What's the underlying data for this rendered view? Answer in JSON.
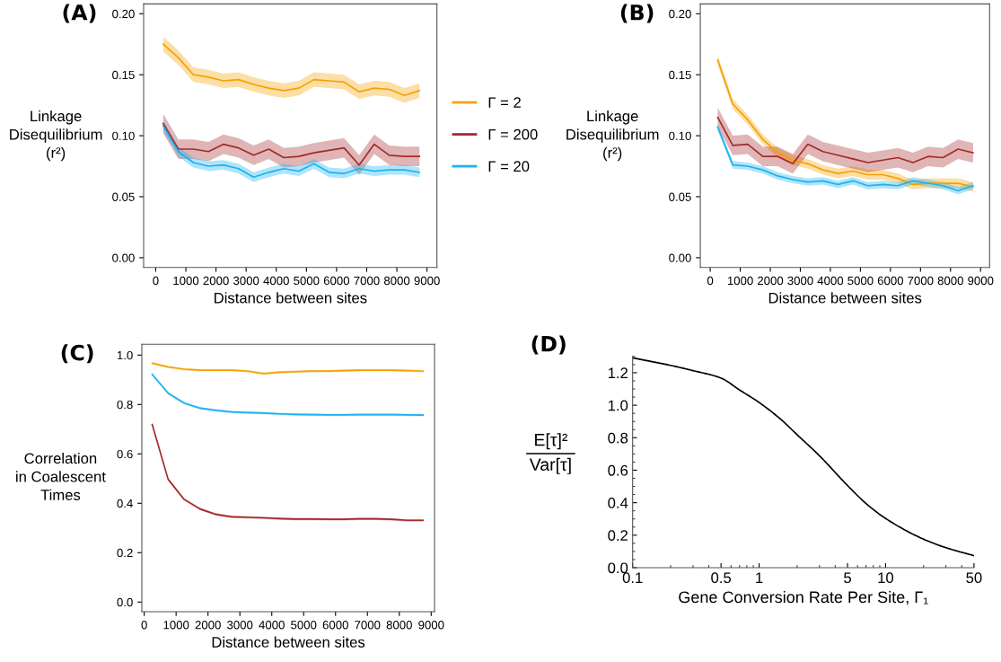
{
  "chart_data": [
    {
      "type": "line",
      "title": "(A)",
      "xlabel": "Distance between sites",
      "ylabel": "Linkage\nDisequilibrium\n(r²)",
      "x": [
        250,
        750,
        1250,
        1750,
        2250,
        2750,
        3250,
        3750,
        4250,
        4750,
        5250,
        5750,
        6250,
        6750,
        7250,
        7750,
        8250,
        8750
      ],
      "xlim": [
        -400,
        9330
      ],
      "ylim": [
        -0.008,
        0.208
      ],
      "xticks": [
        0,
        1000,
        2000,
        3000,
        4000,
        5000,
        6000,
        7000,
        8000,
        9000
      ],
      "yticks": [
        {
          "value": 0,
          "label": "0.00"
        },
        {
          "value": 0.05,
          "label": "0.05"
        },
        {
          "value": 0.1,
          "label": "0.10"
        },
        {
          "value": 0.15,
          "label": "0.15"
        },
        {
          "value": 0.2,
          "label": "0.20"
        }
      ],
      "legend": "right",
      "series": [
        {
          "name": "Γ = 2",
          "color": "#f5a100",
          "values": [
            0.175,
            0.164,
            0.15,
            0.148,
            0.145,
            0.146,
            0.142,
            0.139,
            0.137,
            0.139,
            0.146,
            0.145,
            0.144,
            0.136,
            0.139,
            0.138,
            0.133,
            0.137
          ],
          "lower": [
            0.169,
            0.158,
            0.144,
            0.142,
            0.139,
            0.14,
            0.136,
            0.133,
            0.131,
            0.133,
            0.14,
            0.139,
            0.138,
            0.13,
            0.133,
            0.132,
            0.127,
            0.131
          ],
          "upper": [
            0.181,
            0.17,
            0.156,
            0.154,
            0.151,
            0.152,
            0.148,
            0.145,
            0.143,
            0.145,
            0.152,
            0.151,
            0.15,
            0.142,
            0.145,
            0.144,
            0.139,
            0.143
          ]
        },
        {
          "name": "Γ = 200",
          "color": "#a52a2a",
          "values": [
            0.11,
            0.089,
            0.089,
            0.087,
            0.093,
            0.09,
            0.084,
            0.089,
            0.082,
            0.083,
            0.086,
            0.088,
            0.09,
            0.076,
            0.093,
            0.084,
            0.083,
            0.083
          ],
          "lower": [
            0.102,
            0.081,
            0.081,
            0.079,
            0.085,
            0.082,
            0.076,
            0.081,
            0.074,
            0.075,
            0.078,
            0.08,
            0.082,
            0.068,
            0.085,
            0.076,
            0.075,
            0.075
          ],
          "upper": [
            0.118,
            0.097,
            0.097,
            0.095,
            0.101,
            0.098,
            0.092,
            0.097,
            0.09,
            0.091,
            0.094,
            0.096,
            0.098,
            0.084,
            0.101,
            0.092,
            0.091,
            0.091
          ]
        },
        {
          "name": "Γ = 20",
          "color": "#19b2f0",
          "values": [
            0.108,
            0.087,
            0.078,
            0.075,
            0.076,
            0.073,
            0.066,
            0.07,
            0.073,
            0.071,
            0.077,
            0.07,
            0.069,
            0.073,
            0.071,
            0.072,
            0.072,
            0.07
          ],
          "lower": [
            0.104,
            0.083,
            0.074,
            0.071,
            0.072,
            0.069,
            0.062,
            0.066,
            0.069,
            0.067,
            0.073,
            0.066,
            0.065,
            0.069,
            0.067,
            0.068,
            0.068,
            0.066
          ],
          "upper": [
            0.112,
            0.091,
            0.082,
            0.079,
            0.08,
            0.077,
            0.07,
            0.074,
            0.077,
            0.075,
            0.081,
            0.074,
            0.073,
            0.077,
            0.075,
            0.076,
            0.076,
            0.074
          ]
        }
      ]
    },
    {
      "type": "line",
      "title": "(B)",
      "xlabel": "Distance between sites",
      "ylabel": "Linkage\nDisequilibrium\n(r²)",
      "x": [
        250,
        750,
        1250,
        1750,
        2250,
        2750,
        3250,
        3750,
        4250,
        4750,
        5250,
        5750,
        6250,
        6750,
        7250,
        7750,
        8250,
        8750
      ],
      "xlim": [
        -330,
        9300
      ],
      "ylim": [
        -0.008,
        0.208
      ],
      "xticks": [
        0,
        1000,
        2000,
        3000,
        4000,
        5000,
        6000,
        7000,
        8000,
        9000
      ],
      "yticks": [
        {
          "value": 0,
          "label": "0.00"
        },
        {
          "value": 0.05,
          "label": "0.05"
        },
        {
          "value": 0.1,
          "label": "0.10"
        },
        {
          "value": 0.15,
          "label": "0.15"
        },
        {
          "value": 0.2,
          "label": "0.20"
        }
      ],
      "series": [
        {
          "color": "#f5a100",
          "values": [
            0.162,
            0.126,
            0.113,
            0.097,
            0.086,
            0.08,
            0.077,
            0.072,
            0.069,
            0.071,
            0.068,
            0.068,
            0.065,
            0.06,
            0.061,
            0.061,
            0.061,
            0.058
          ],
          "lower": [
            0.158,
            0.122,
            0.109,
            0.093,
            0.082,
            0.076,
            0.073,
            0.068,
            0.065,
            0.067,
            0.064,
            0.064,
            0.061,
            0.056,
            0.057,
            0.057,
            0.057,
            0.054
          ],
          "upper": [
            0.166,
            0.13,
            0.117,
            0.101,
            0.09,
            0.084,
            0.081,
            0.076,
            0.073,
            0.075,
            0.072,
            0.072,
            0.069,
            0.064,
            0.065,
            0.065,
            0.065,
            0.062
          ]
        },
        {
          "color": "#a52a2a",
          "values": [
            0.115,
            0.092,
            0.093,
            0.083,
            0.083,
            0.077,
            0.093,
            0.087,
            0.084,
            0.081,
            0.078,
            0.08,
            0.082,
            0.078,
            0.083,
            0.082,
            0.089,
            0.086
          ],
          "lower": [
            0.107,
            0.084,
            0.085,
            0.075,
            0.075,
            0.069,
            0.085,
            0.079,
            0.076,
            0.073,
            0.07,
            0.072,
            0.074,
            0.07,
            0.075,
            0.074,
            0.081,
            0.078
          ],
          "upper": [
            0.123,
            0.1,
            0.101,
            0.091,
            0.091,
            0.085,
            0.101,
            0.095,
            0.092,
            0.089,
            0.086,
            0.088,
            0.09,
            0.086,
            0.091,
            0.09,
            0.097,
            0.094
          ]
        },
        {
          "color": "#19b2f0",
          "values": [
            0.107,
            0.076,
            0.075,
            0.072,
            0.067,
            0.064,
            0.062,
            0.063,
            0.06,
            0.063,
            0.059,
            0.06,
            0.059,
            0.063,
            0.061,
            0.059,
            0.055,
            0.059
          ],
          "lower": [
            0.104,
            0.073,
            0.072,
            0.069,
            0.064,
            0.061,
            0.059,
            0.06,
            0.057,
            0.06,
            0.056,
            0.057,
            0.056,
            0.06,
            0.058,
            0.056,
            0.052,
            0.056
          ],
          "upper": [
            0.11,
            0.079,
            0.078,
            0.075,
            0.07,
            0.067,
            0.065,
            0.066,
            0.063,
            0.066,
            0.062,
            0.063,
            0.062,
            0.066,
            0.064,
            0.062,
            0.058,
            0.062
          ]
        }
      ]
    },
    {
      "type": "line",
      "title": "(C)",
      "xlabel": "Distance between sites",
      "ylabel": "Correlation\nin Coalescent\nTimes",
      "x": [
        250,
        750,
        1250,
        1750,
        2250,
        2750,
        3250,
        3750,
        4250,
        4750,
        5250,
        5750,
        6250,
        6750,
        7250,
        7750,
        8250,
        8750
      ],
      "xlim": [
        -75,
        9105
      ],
      "ylim": [
        -0.039,
        1.044
      ],
      "xticks": [
        0,
        1000,
        2000,
        3000,
        4000,
        5000,
        6000,
        7000,
        8000,
        9000
      ],
      "yticks": [
        {
          "value": 0,
          "label": "0.0"
        },
        {
          "value": 0.2,
          "label": "0.2"
        },
        {
          "value": 0.4,
          "label": "0.4"
        },
        {
          "value": 0.6,
          "label": "0.6"
        },
        {
          "value": 0.8,
          "label": "0.8"
        },
        {
          "value": 1,
          "label": "1.0"
        }
      ],
      "series": [
        {
          "color": "#f5a100",
          "values": [
            0.967,
            0.952,
            0.943,
            0.939,
            0.939,
            0.939,
            0.935,
            0.925,
            0.931,
            0.933,
            0.935,
            0.935,
            0.937,
            0.939,
            0.939,
            0.939,
            0.937,
            0.935
          ],
          "lower": [
            0.962,
            0.947,
            0.938,
            0.934,
            0.934,
            0.934,
            0.93,
            0.92,
            0.926,
            0.928,
            0.93,
            0.93,
            0.932,
            0.934,
            0.934,
            0.934,
            0.932,
            0.93
          ],
          "upper": [
            0.972,
            0.957,
            0.948,
            0.944,
            0.944,
            0.944,
            0.94,
            0.93,
            0.936,
            0.938,
            0.94,
            0.94,
            0.942,
            0.944,
            0.944,
            0.944,
            0.942,
            0.94
          ]
        },
        {
          "color": "#19b2f0",
          "values": [
            0.922,
            0.846,
            0.806,
            0.785,
            0.776,
            0.77,
            0.767,
            0.765,
            0.762,
            0.76,
            0.759,
            0.758,
            0.758,
            0.759,
            0.759,
            0.759,
            0.758,
            0.757
          ],
          "lower": [
            0.917,
            0.841,
            0.801,
            0.78,
            0.771,
            0.765,
            0.762,
            0.76,
            0.757,
            0.755,
            0.754,
            0.753,
            0.753,
            0.754,
            0.754,
            0.754,
            0.753,
            0.752
          ],
          "upper": [
            0.927,
            0.851,
            0.811,
            0.79,
            0.781,
            0.775,
            0.772,
            0.77,
            0.767,
            0.765,
            0.764,
            0.763,
            0.763,
            0.764,
            0.764,
            0.764,
            0.763,
            0.762
          ]
        },
        {
          "color": "#a52a2a",
          "values": [
            0.719,
            0.497,
            0.416,
            0.377,
            0.355,
            0.345,
            0.343,
            0.341,
            0.338,
            0.336,
            0.336,
            0.335,
            0.335,
            0.337,
            0.337,
            0.335,
            0.331,
            0.331
          ],
          "lower": [
            0.714,
            0.492,
            0.411,
            0.372,
            0.35,
            0.34,
            0.338,
            0.336,
            0.333,
            0.331,
            0.331,
            0.33,
            0.33,
            0.332,
            0.332,
            0.33,
            0.326,
            0.326
          ],
          "upper": [
            0.724,
            0.502,
            0.421,
            0.382,
            0.36,
            0.35,
            0.348,
            0.346,
            0.343,
            0.341,
            0.341,
            0.34,
            0.34,
            0.342,
            0.342,
            0.34,
            0.336,
            0.336
          ]
        }
      ]
    },
    {
      "type": "line",
      "title": "(D)",
      "xlabel": "Gene Conversion Rate Per Site, Γ₁",
      "ylabel": "E[τ]²\nVar[τ]",
      "log": "x",
      "x": [
        0.1,
        0.2,
        0.3,
        0.5,
        0.7,
        1,
        1.5,
        2,
        3,
        5,
        7,
        10,
        20,
        30,
        50
      ],
      "xlim": [
        0.1,
        50
      ],
      "ylim": [
        0,
        1.3
      ],
      "xticks": [
        0.1,
        0.5,
        1,
        5,
        10,
        50
      ],
      "yticks": [
        {
          "value": 0,
          "label": "0.0"
        },
        {
          "value": 0.2,
          "label": "0.2"
        },
        {
          "value": 0.4,
          "label": "0.4"
        },
        {
          "value": 0.6,
          "label": "0.6"
        },
        {
          "value": 0.8,
          "label": "0.8"
        },
        {
          "value": 1,
          "label": "1.0"
        },
        {
          "value": 1.2,
          "label": "1.2"
        }
      ],
      "series": [
        {
          "color": "#000000",
          "values": [
            1.292,
            1.245,
            1.213,
            1.167,
            1.094,
            1.017,
            0.91,
            0.818,
            0.689,
            0.506,
            0.395,
            0.303,
            0.175,
            0.123,
            0.074
          ]
        }
      ]
    }
  ]
}
